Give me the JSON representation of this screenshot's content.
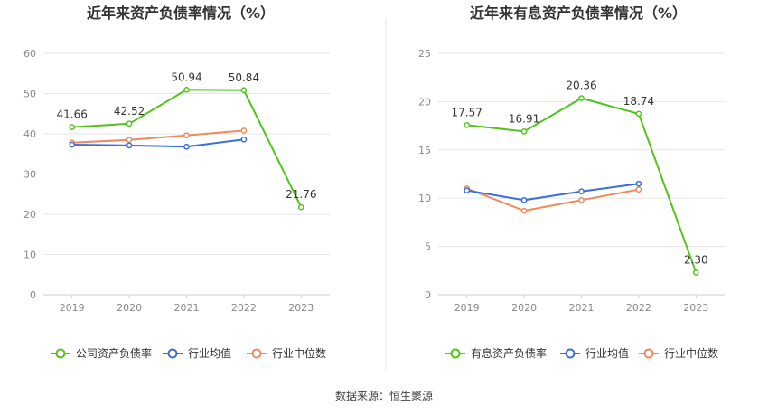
{
  "colors": {
    "company": "#52c41a",
    "industry_avg": "#3a6fd9",
    "industry_median": "#f08a5d",
    "grid": "#e6e6e6",
    "divider": "#e3e3e3"
  },
  "source_text": "数据来源：恒生聚源",
  "chart_data": [
    {
      "type": "line",
      "title": "近年来资产负债率情况（%）",
      "xlabel": "",
      "ylabel": "",
      "categories": [
        "2019",
        "2020",
        "2021",
        "2022",
        "2023"
      ],
      "ylim": [
        0,
        60
      ],
      "yticks": [
        "0",
        "10",
        "20",
        "30",
        "40",
        "50",
        "60"
      ],
      "grid": true,
      "legend_position": "bottom",
      "series": [
        {
          "name": "公司资产负债率",
          "values": [
            41.66,
            42.52,
            50.94,
            50.84,
            21.76
          ],
          "labels": [
            "41.66",
            "42.52",
            "50.94",
            "50.84",
            "21.76"
          ]
        },
        {
          "name": "行业均值",
          "values": [
            37.3,
            37.1,
            36.8,
            38.6,
            null
          ]
        },
        {
          "name": "行业中位数",
          "values": [
            37.8,
            38.5,
            39.6,
            40.8,
            null
          ]
        }
      ]
    },
    {
      "type": "line",
      "title": "近年来有息资产负债率情况（%）",
      "xlabel": "",
      "ylabel": "",
      "categories": [
        "2019",
        "2020",
        "2021",
        "2022",
        "2023"
      ],
      "ylim": [
        0,
        25
      ],
      "yticks": [
        "0",
        "5",
        "10",
        "15",
        "20",
        "25"
      ],
      "grid": true,
      "legend_position": "bottom",
      "series": [
        {
          "name": "有息资产负债率",
          "values": [
            17.57,
            16.91,
            20.36,
            18.74,
            2.3
          ],
          "labels": [
            "17.57",
            "16.91",
            "20.36",
            "18.74",
            "2.30"
          ]
        },
        {
          "name": "行业均值",
          "values": [
            10.8,
            9.8,
            10.7,
            11.5,
            null
          ]
        },
        {
          "name": "行业中位数",
          "values": [
            11.0,
            8.7,
            9.8,
            10.9,
            null
          ]
        }
      ]
    }
  ]
}
